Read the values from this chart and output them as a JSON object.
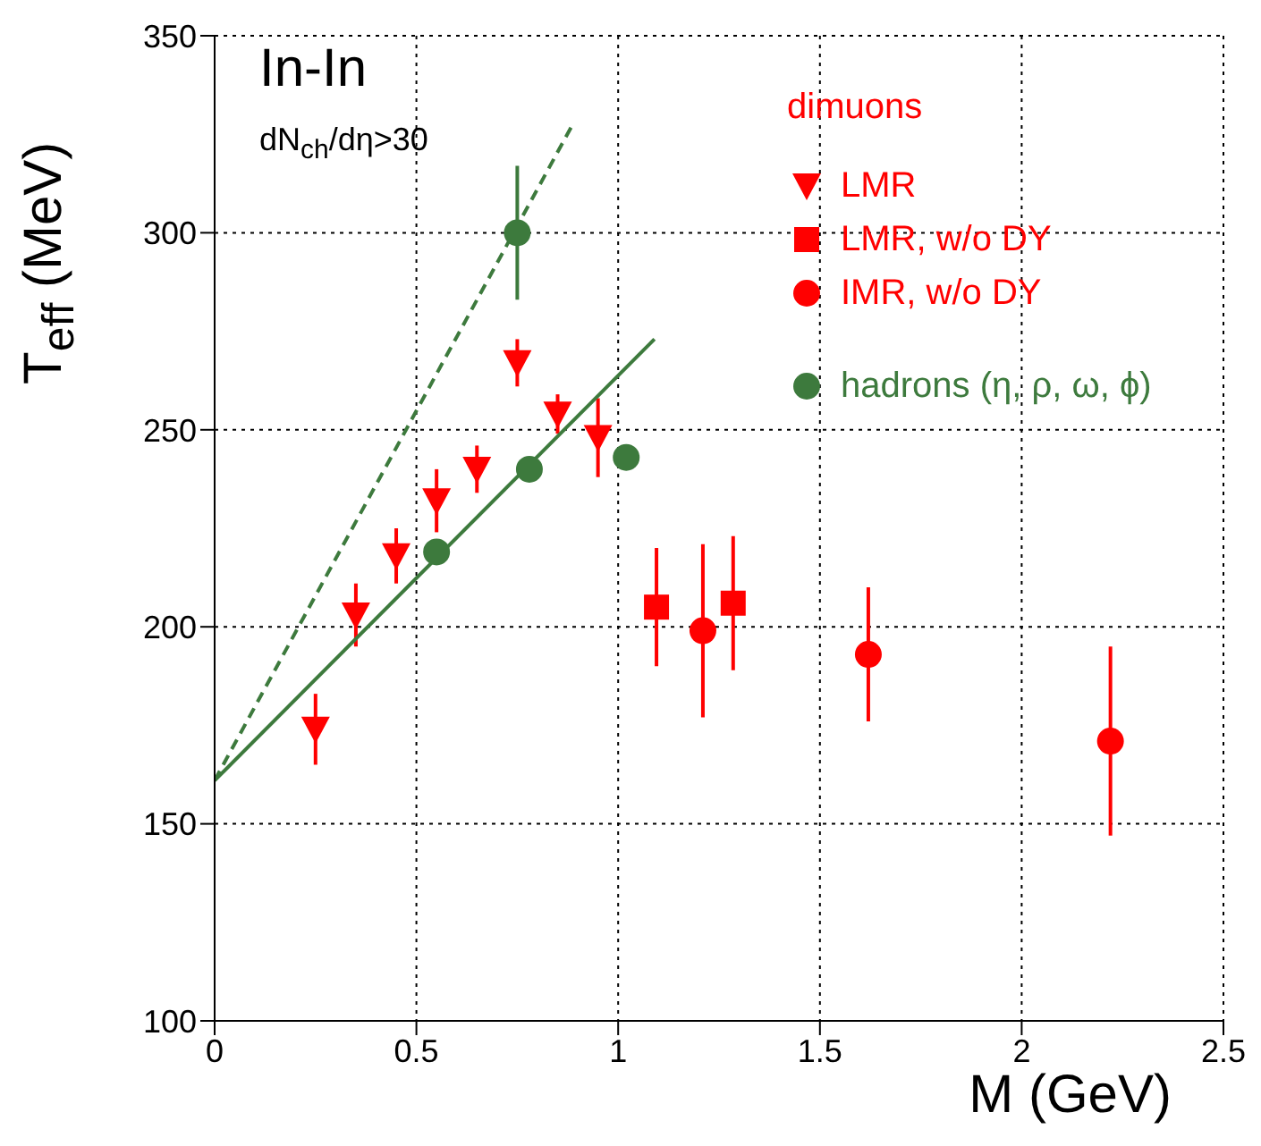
{
  "chart_data": {
    "type": "scatter",
    "xlabel": "M (GeV)",
    "ylabel": "T$_{eff}$ (MeV)",
    "xlim": [
      0,
      2.5
    ],
    "xticks": [
      0,
      0.5,
      1,
      1.5,
      2,
      2.5
    ],
    "ylim": [
      100,
      350
    ],
    "yticks": [
      100,
      150,
      200,
      250,
      300,
      350
    ],
    "grid": true,
    "legend": "top right",
    "legend_title": "dimuons",
    "annotations": [
      "In-In",
      "dN$_{ch}$/dη>30"
    ],
    "series": [
      {
        "name": "LMR",
        "marker": "triangle",
        "color": "#ff0000",
        "x": [
          0.25,
          0.35,
          0.45,
          0.55,
          0.65,
          0.75,
          0.85,
          0.95
        ],
        "values": [
          174,
          203,
          218,
          232,
          240,
          267,
          254,
          248
        ],
        "errors": [
          9,
          8,
          7,
          8,
          6,
          6,
          5,
          10
        ]
      },
      {
        "name": "LMR, w/o DY",
        "marker": "square",
        "color": "#ff0000",
        "x": [
          1.095,
          1.285
        ],
        "values": [
          205,
          206
        ],
        "errors": [
          15,
          17
        ]
      },
      {
        "name": "IMR,  w/o DY",
        "marker": "circle",
        "color": "#ff0000",
        "x": [
          1.21,
          1.62,
          2.22
        ],
        "values": [
          199,
          193,
          171
        ],
        "errors": [
          22,
          17,
          24
        ]
      },
      {
        "name": "hadrons (η, ρ, ω, ϕ)",
        "marker": "circle",
        "color": "#3d7a3d",
        "x": [
          0.55,
          0.78,
          1.02,
          0.75
        ],
        "values": [
          219,
          240,
          243,
          300
        ],
        "errors": [
          null,
          null,
          null,
          17
        ]
      },
      {
        "type": "line",
        "marker": "none",
        "line_style": "solid",
        "color": "#3d7a3d",
        "x": [
          0,
          1.09
        ],
        "values": [
          161,
          273
        ]
      },
      {
        "type": "line",
        "marker": "none",
        "line_style": "dashed",
        "color": "#3d7a3d",
        "x": [
          0,
          0.89
        ],
        "values": [
          161,
          328
        ]
      }
    ]
  }
}
